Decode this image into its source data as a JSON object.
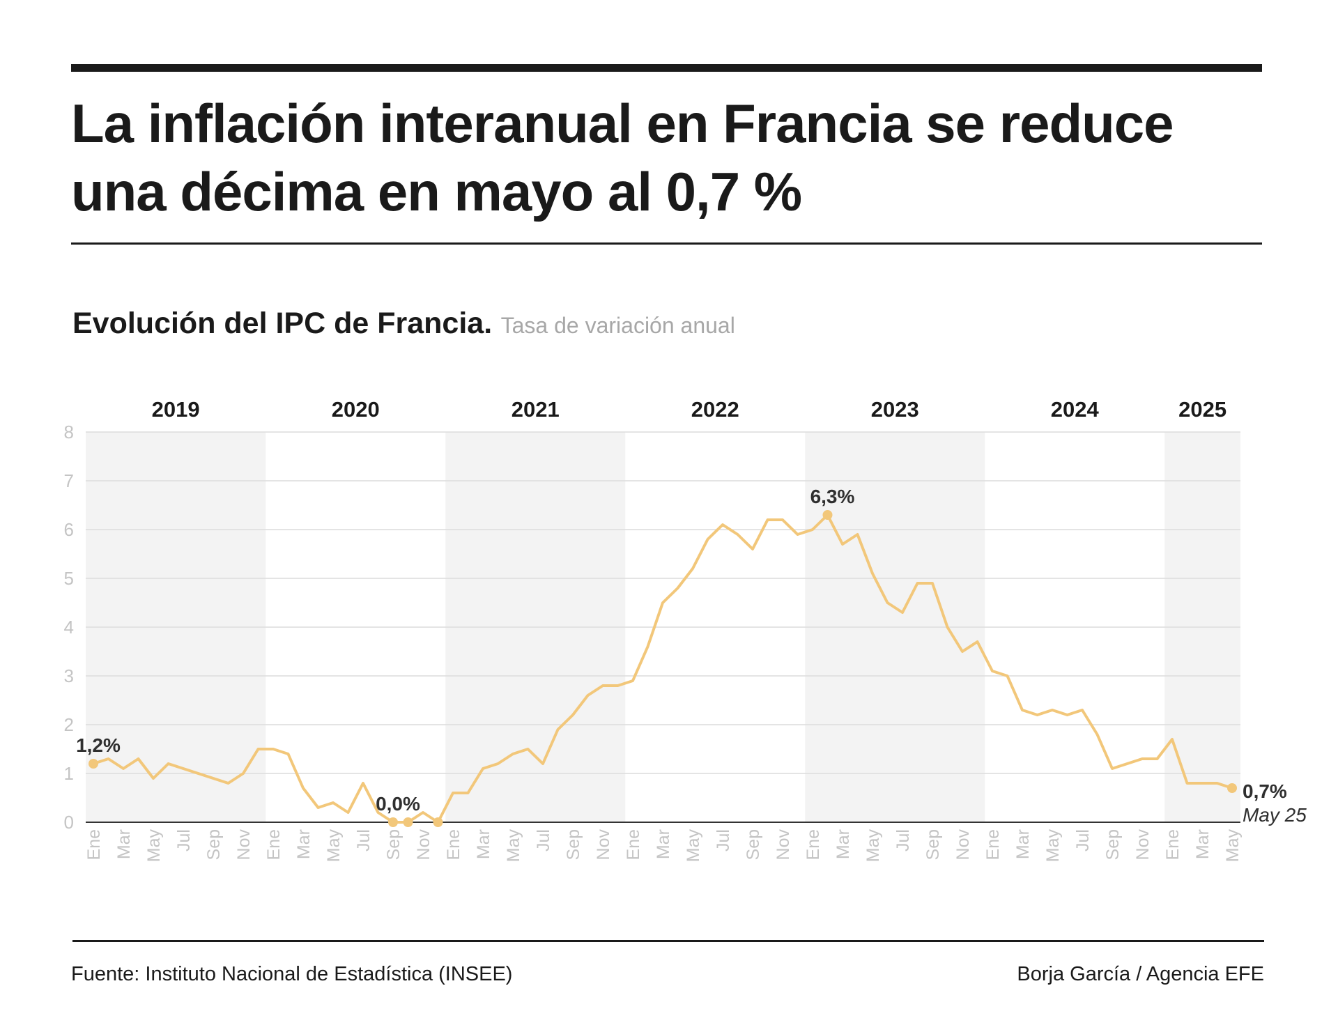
{
  "header": {
    "title": "La inflación interanual en Francia se reduce una décima en mayo al 0,7 %"
  },
  "subtitle": {
    "main": "Evolución del IPC de Francia.",
    "secondary": "Tasa de variación anual"
  },
  "footer": {
    "source": "Fuente: Instituto Nacional de Estadística (INSEE)",
    "credit": "Borja García / Agencia EFE"
  },
  "colors": {
    "line": "#f2c77a",
    "band": "#f3f3f3",
    "grid": "#dcdcdc",
    "axis_text": "#c4c4c4",
    "label_text": "#2f2f2f"
  },
  "chart_data": {
    "type": "line",
    "ylim": [
      0,
      8
    ],
    "y_ticks": [
      "0",
      "1",
      "2",
      "3",
      "4",
      "5",
      "6",
      "7",
      "8"
    ],
    "grid": true,
    "years": [
      "2019",
      "2020",
      "2021",
      "2022",
      "2023",
      "2024",
      "2025"
    ],
    "month_labels": [
      "Ene",
      "Mar",
      "May",
      "Jul",
      "Sep",
      "Nov",
      "Ene",
      "Mar",
      "May",
      "Jul",
      "Sep",
      "Nov",
      "Ene",
      "Mar",
      "May",
      "Jul",
      "Sep",
      "Nov",
      "Ene",
      "Mar",
      "May",
      "Jul",
      "Sep",
      "Nov",
      "Ene",
      "Mar",
      "May",
      "Jul",
      "Sep",
      "Nov",
      "Ene",
      "Mar",
      "May",
      "Jul",
      "Sep",
      "Nov",
      "Ene",
      "Mar",
      "May"
    ],
    "series": [
      {
        "values": [
          1.2,
          1.3,
          1.1,
          1.3,
          0.9,
          1.2,
          1.1,
          1.0,
          0.9,
          0.8,
          1.0,
          1.5,
          1.5,
          1.4,
          0.7,
          0.3,
          0.4,
          0.2,
          0.8,
          0.2,
          0.0,
          0.0,
          0.2,
          0.0,
          0.6,
          0.6,
          1.1,
          1.2,
          1.4,
          1.5,
          1.2,
          1.9,
          2.2,
          2.6,
          2.8,
          2.8,
          2.9,
          3.6,
          4.5,
          4.8,
          5.2,
          5.8,
          6.1,
          5.9,
          5.6,
          6.2,
          6.2,
          5.9,
          6.0,
          6.3,
          5.7,
          5.9,
          5.1,
          4.5,
          4.3,
          4.9,
          4.9,
          4.0,
          3.5,
          3.7,
          3.1,
          3.0,
          2.3,
          2.2,
          2.3,
          2.2,
          2.3,
          1.8,
          1.1,
          1.2,
          1.3,
          1.3,
          1.7,
          0.8,
          0.8,
          0.8,
          0.7
        ]
      }
    ],
    "annotations": [
      {
        "index": 0,
        "label": "1,2%"
      },
      {
        "index": 20,
        "label": "0,0%"
      },
      {
        "index": 49,
        "label": "6,3%"
      },
      {
        "index": 76,
        "label": "0,7%",
        "sublabel": "May 25"
      }
    ],
    "extra_markers": [
      21,
      23
    ]
  }
}
